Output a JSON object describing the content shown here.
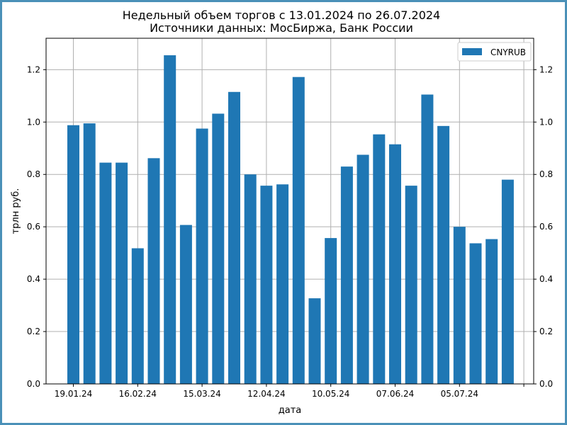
{
  "chart_data": {
    "type": "bar",
    "title": "Недельный объем торгов с 13.01.2024 по 26.07.2024",
    "subtitle": "Источники данных: МосБиржа, Банк России",
    "xlabel": "дата",
    "ylabel": "трлн руб.",
    "ylim": [
      0,
      1.32
    ],
    "yticks": [
      0.0,
      0.2,
      0.4,
      0.6,
      0.8,
      1.0,
      1.2
    ],
    "ytick_labels": [
      "0.0",
      "0.2",
      "0.4",
      "0.6",
      "0.8",
      "1.0",
      "1.2"
    ],
    "xtick_labels": [
      "19.01.24",
      "16.02.24",
      "15.03.24",
      "12.04.24",
      "10.05.24",
      "07.06.24",
      "05.07.24"
    ],
    "xtick_bar_index": [
      0,
      4,
      8,
      12,
      16,
      20,
      24
    ],
    "grid": true,
    "legend_position": "top-right",
    "colors": {
      "bar": "#1f77b4",
      "grid": "#b0b0b0",
      "frame_border": "#4a90b8"
    },
    "series": [
      {
        "name": "CNYRUB",
        "values": [
          0.988,
          0.995,
          0.845,
          0.845,
          0.518,
          0.862,
          1.255,
          0.607,
          0.975,
          1.032,
          1.115,
          0.8,
          0.757,
          0.762,
          1.172,
          0.327,
          0.557,
          0.83,
          0.875,
          0.953,
          0.915,
          0.757,
          1.105,
          0.985,
          0.6,
          0.537,
          0.553,
          0.78
        ]
      }
    ]
  }
}
